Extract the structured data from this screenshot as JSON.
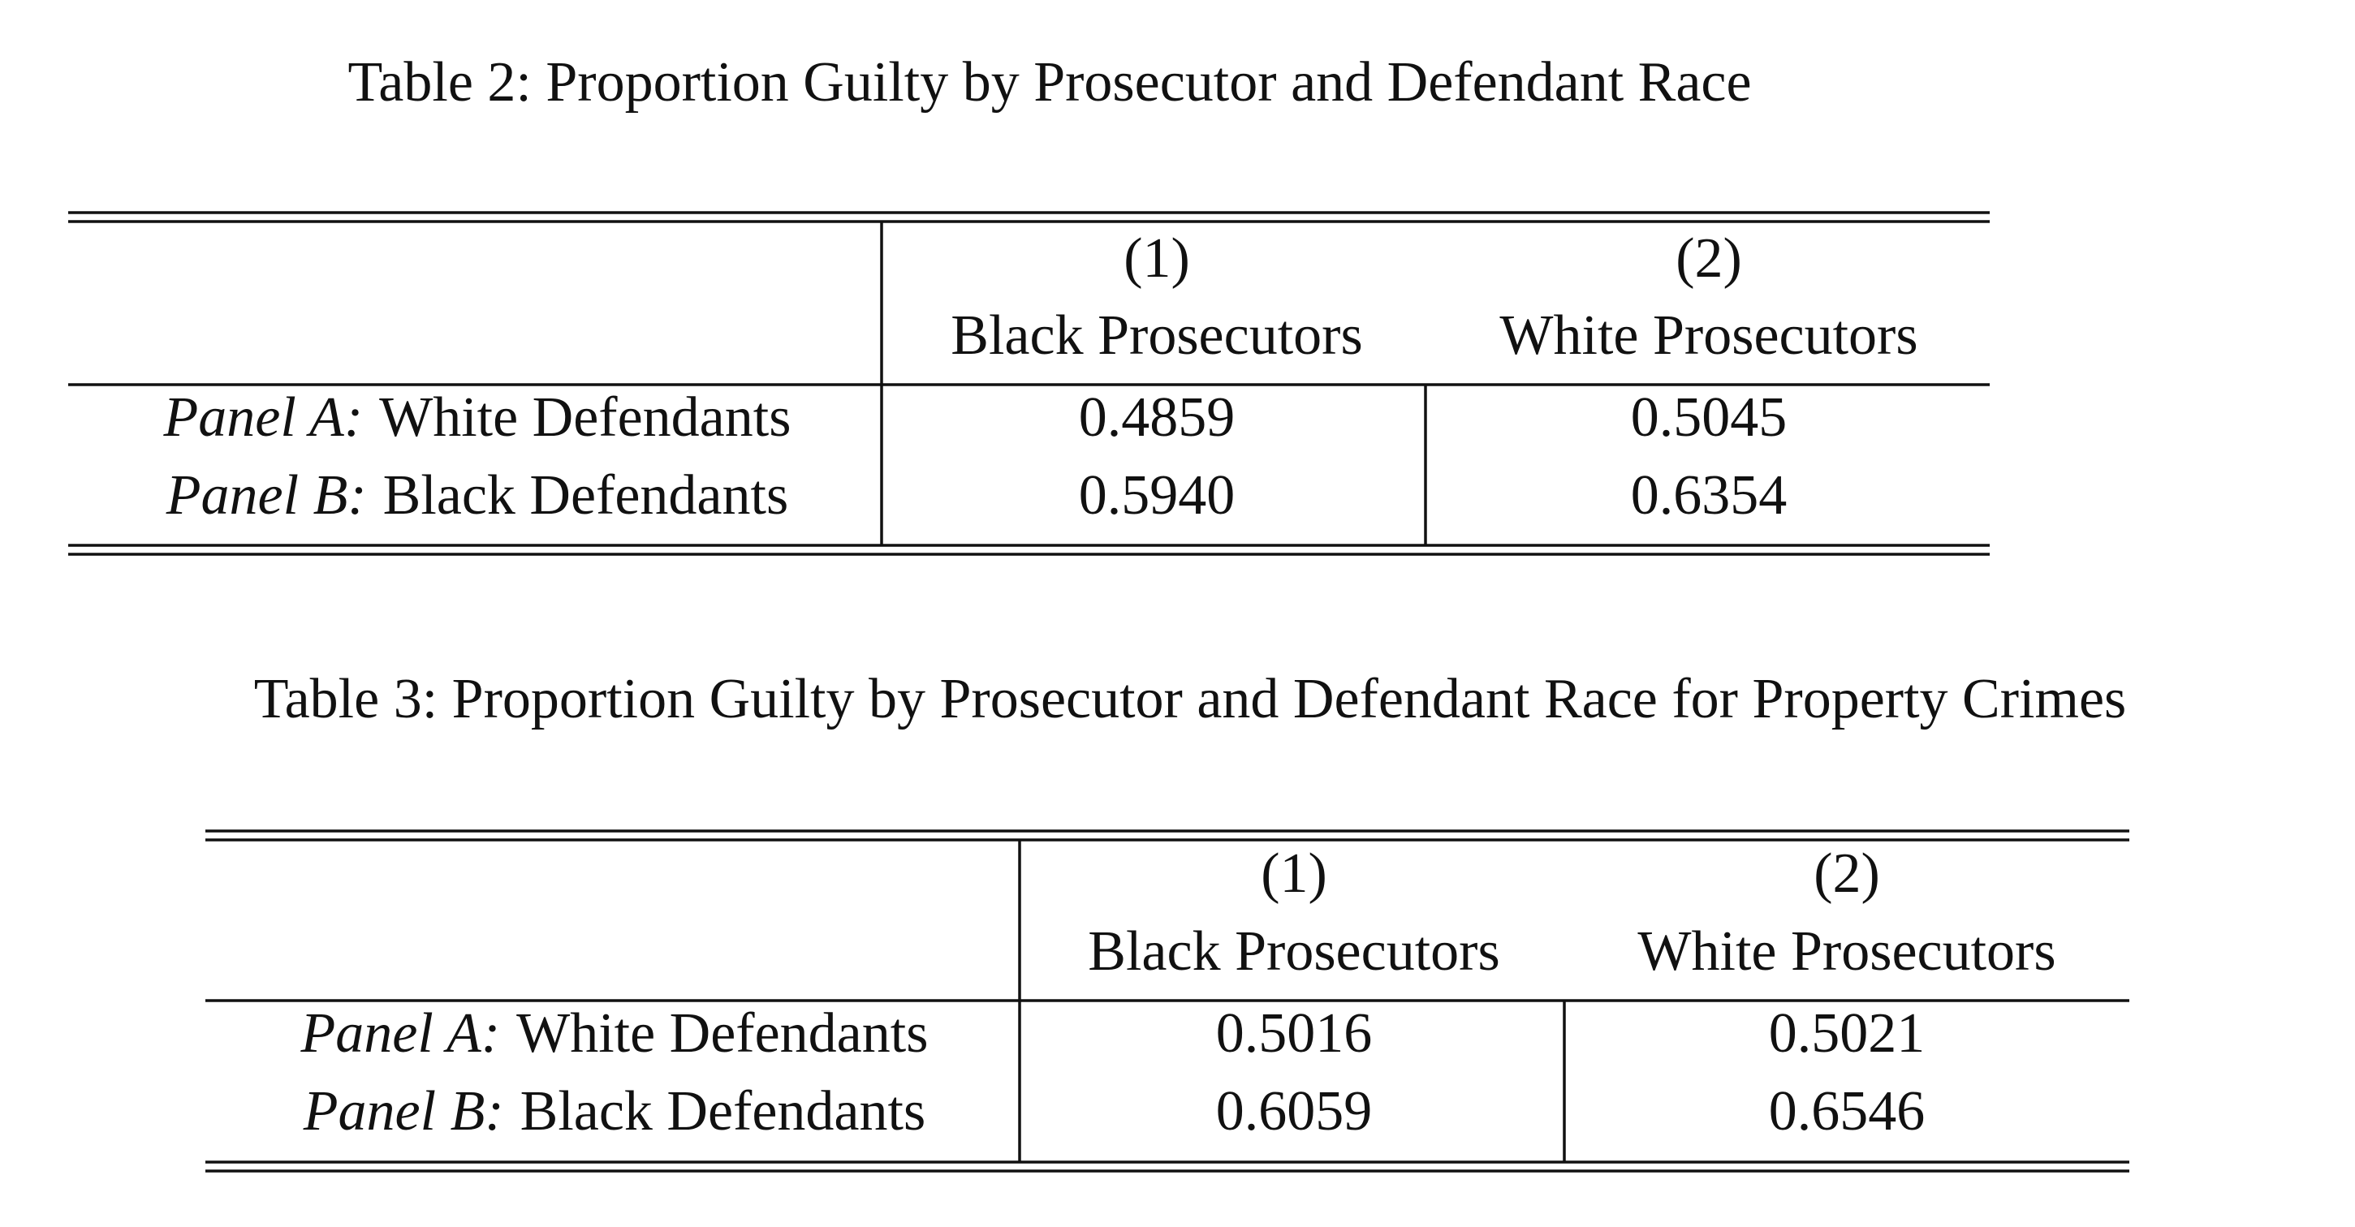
{
  "tables": [
    {
      "caption": "Table 2: Proportion Guilty by Prosecutor and Defendant Race",
      "column_numbers": [
        "(1)",
        "(2)"
      ],
      "column_headers": [
        "Black Prosecutors",
        "White Prosecutors"
      ],
      "rows": [
        {
          "panel": "Panel A:",
          "label": "White Defendants",
          "values": [
            "0.4859",
            "0.5045"
          ]
        },
        {
          "panel": "Panel B:",
          "label": "Black Defendants",
          "values": [
            "0.5940",
            "0.6354"
          ]
        }
      ]
    },
    {
      "caption": "Table 3: Proportion Guilty by Prosecutor and Defendant Race for Property Crimes",
      "column_numbers": [
        "(1)",
        "(2)"
      ],
      "column_headers": [
        "Black Prosecutors",
        "White Prosecutors"
      ],
      "rows": [
        {
          "panel": "Panel A:",
          "label": "White Defendants",
          "values": [
            "0.5016",
            "0.5021"
          ]
        },
        {
          "panel": "Panel B:",
          "label": "Black Defendants",
          "values": [
            "0.6059",
            "0.6546"
          ]
        }
      ]
    }
  ]
}
